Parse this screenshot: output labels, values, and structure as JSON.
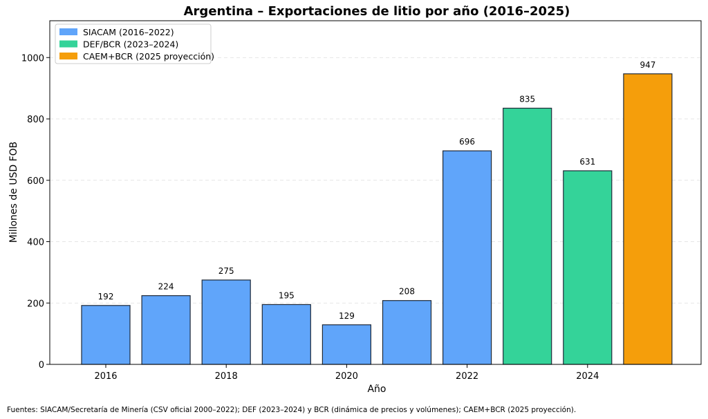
{
  "chart_data": {
    "type": "bar",
    "title": "Argentina – Exportaciones de litio por año (2016–2025)",
    "xlabel": "Año",
    "ylabel": "Millones de USD FOB",
    "categories": [
      2016,
      2017,
      2018,
      2019,
      2020,
      2021,
      2022,
      2023,
      2024,
      2025
    ],
    "values": [
      192,
      224,
      275,
      195,
      129,
      208,
      696,
      835,
      631,
      947
    ],
    "data_labels": [
      "192",
      "224",
      "275",
      "195",
      "129",
      "208",
      "696",
      "835",
      "631",
      "947"
    ],
    "bar_groups": [
      "SIACAM",
      "SIACAM",
      "SIACAM",
      "SIACAM",
      "SIACAM",
      "SIACAM",
      "SIACAM",
      "DEF",
      "DEF",
      "CAEM"
    ],
    "series": [
      {
        "key": "SIACAM",
        "name": "SIACAM (2016–2022)",
        "color": "#60a5fa"
      },
      {
        "key": "DEF",
        "name": "DEF/BCR (2023–2024)",
        "color": "#34d399"
      },
      {
        "key": "CAEM",
        "name": "CAEM+BCR (2025 proyección)",
        "color": "#f59e0b"
      }
    ],
    "xticks": [
      "2016",
      "2018",
      "2020",
      "2022",
      "2024"
    ],
    "yticks": [
      "0",
      "200",
      "400",
      "600",
      "800",
      "1000"
    ],
    "ylim": [
      0,
      1120
    ],
    "grid": "y dashed",
    "legend": "top-left"
  },
  "footer": "Fuentes: SIACAM/Secretaría de Minería (CSV oficial 2000–2022); DEF (2023–2024) y BCR (dinámica de precios y volúmenes); CAEM+BCR (2025 proyección)."
}
